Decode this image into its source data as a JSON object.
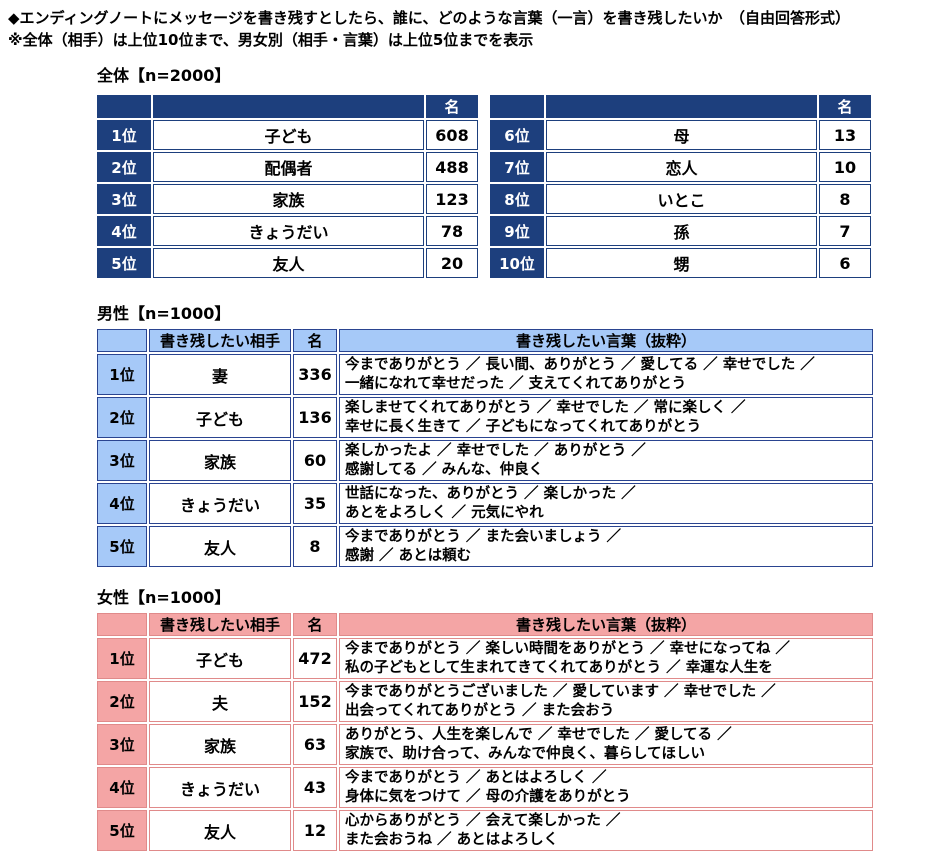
{
  "title": "◆エンディングノートにメッセージを書き残すとしたら、誰に、どのような言葉（一言）を書き残したいか　（自由回答形式）",
  "subtitle": "※全体（相手）は上位10位まで、男女別（相手・言葉）は上位5位までを表示",
  "colors": {
    "navy": "#1d3f7d",
    "male_border": "#2a4490",
    "male_fill": "#a6c9f8",
    "female_border": "#e08a8a",
    "female_fill": "#f4a5a5"
  },
  "overall": {
    "label": "全体【n=2000】",
    "count_header": "名",
    "left_rows": [
      {
        "rank": "1位",
        "target": "子ども",
        "count": "608"
      },
      {
        "rank": "2位",
        "target": "配偶者",
        "count": "488"
      },
      {
        "rank": "3位",
        "target": "家族",
        "count": "123"
      },
      {
        "rank": "4位",
        "target": "きょうだい",
        "count": "78"
      },
      {
        "rank": "5位",
        "target": "友人",
        "count": "20"
      }
    ],
    "right_rows": [
      {
        "rank": "6位",
        "target": "母",
        "count": "13"
      },
      {
        "rank": "7位",
        "target": "恋人",
        "count": "10"
      },
      {
        "rank": "8位",
        "target": "いとこ",
        "count": "8"
      },
      {
        "rank": "9位",
        "target": "孫",
        "count": "7"
      },
      {
        "rank": "10位",
        "target": "甥",
        "count": "6"
      }
    ]
  },
  "male": {
    "label": "男性【n=1000】",
    "headers": {
      "target": "書き残したい相手",
      "count": "名",
      "words": "書き残したい言葉（抜粋）"
    },
    "rows": [
      {
        "rank": "1位",
        "target": "妻",
        "count": "336",
        "words1": "今までありがとう ／ 長い間、ありがとう ／ 愛してる ／ 幸せでした ／",
        "words2": "一緒になれて幸せだった ／ 支えてくれてありがとう"
      },
      {
        "rank": "2位",
        "target": "子ども",
        "count": "136",
        "words1": "楽しませてくれてありがとう ／ 幸せでした ／ 常に楽しく ／",
        "words2": "幸せに長く生きて ／ 子どもになってくれてありがとう"
      },
      {
        "rank": "3位",
        "target": "家族",
        "count": "60",
        "words1": "楽しかったよ ／ 幸せでした ／ ありがとう ／",
        "words2": "感謝してる ／ みんな、仲良く"
      },
      {
        "rank": "4位",
        "target": "きょうだい",
        "count": "35",
        "words1": "世話になった、ありがとう ／ 楽しかった ／",
        "words2": "あとをよろしく ／ 元気にやれ"
      },
      {
        "rank": "5位",
        "target": "友人",
        "count": "8",
        "words1": "今までありがとう ／ また会いましょう ／",
        "words2": "感謝 ／ あとは頼む"
      }
    ]
  },
  "female": {
    "label": "女性【n=1000】",
    "headers": {
      "target": "書き残したい相手",
      "count": "名",
      "words": "書き残したい言葉（抜粋）"
    },
    "rows": [
      {
        "rank": "1位",
        "target": "子ども",
        "count": "472",
        "words1": "今までありがとう ／ 楽しい時間をありがとう ／ 幸せになってね ／",
        "words2": "私の子どもとして生まれてきてくれてありがとう ／ 幸運な人生を"
      },
      {
        "rank": "2位",
        "target": "夫",
        "count": "152",
        "words1": "今までありがとうございました ／ 愛しています ／ 幸せでした ／",
        "words2": "出会ってくれてありがとう ／ また会おう"
      },
      {
        "rank": "3位",
        "target": "家族",
        "count": "63",
        "words1": "ありがとう、人生を楽しんで ／ 幸せでした ／ 愛してる ／",
        "words2": "家族で、助け合って、みんなで仲良く、暮らしてほしい"
      },
      {
        "rank": "4位",
        "target": "きょうだい",
        "count": "43",
        "words1": "今までありがとう ／ あとはよろしく ／",
        "words2": "身体に気をつけて ／ 母の介護をありがとう"
      },
      {
        "rank": "5位",
        "target": "友人",
        "count": "12",
        "words1": "心からありがとう ／ 会えて楽しかった ／",
        "words2": "また会おうね ／ あとはよろしく"
      }
    ]
  }
}
